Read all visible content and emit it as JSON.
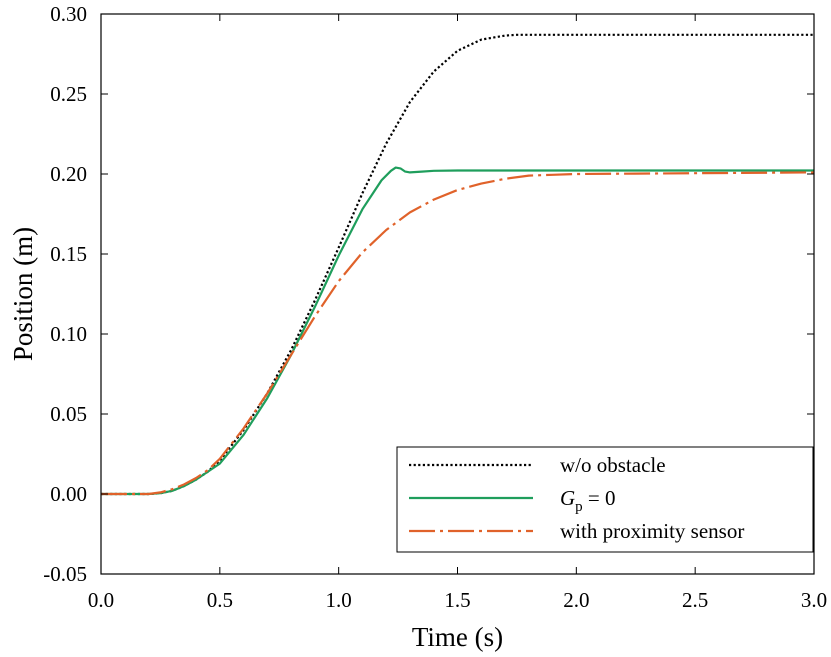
{
  "chart_data": {
    "type": "line",
    "xlabel": "Time (s)",
    "ylabel": "Position (m)",
    "xlim": [
      0,
      3
    ],
    "ylim": [
      -0.05,
      0.3
    ],
    "grid": false,
    "legend_position": "bottom-right",
    "x_ticks": [
      "0.0",
      "0.5",
      "1.0",
      "1.5",
      "2.0",
      "2.5",
      "3.0"
    ],
    "y_ticks": [
      "-0.05",
      "0.00",
      "0.05",
      "0.10",
      "0.15",
      "0.20",
      "0.25",
      "0.30"
    ],
    "x_tick_values": [
      0,
      0.5,
      1.0,
      1.5,
      2.0,
      2.5,
      3.0
    ],
    "y_tick_values": [
      -0.05,
      0,
      0.05,
      0.1,
      0.15,
      0.2,
      0.25,
      0.3
    ],
    "series": [
      {
        "name": "w/o obstacle",
        "color": "#000000",
        "style": "dotted",
        "x": [
          0,
          0.2,
          0.25,
          0.3,
          0.35,
          0.4,
          0.45,
          0.5,
          0.6,
          0.7,
          0.8,
          0.9,
          1.0,
          1.1,
          1.2,
          1.3,
          1.4,
          1.5,
          1.6,
          1.7,
          1.75,
          1.8,
          1.85,
          2.0,
          2.5,
          3.0
        ],
        "y": [
          0,
          0,
          0.0005,
          0.002,
          0.005,
          0.009,
          0.014,
          0.021,
          0.04,
          0.063,
          0.09,
          0.121,
          0.154,
          0.188,
          0.219,
          0.245,
          0.264,
          0.277,
          0.284,
          0.2865,
          0.287,
          0.287,
          0.287,
          0.287,
          0.287,
          0.287
        ]
      },
      {
        "name": "G_p = 0",
        "label_main": "G",
        "label_sub": "p",
        "label_rest": " = 0",
        "color": "#1f9e5c",
        "style": "solid",
        "x": [
          0,
          0.2,
          0.25,
          0.3,
          0.35,
          0.4,
          0.45,
          0.5,
          0.6,
          0.7,
          0.8,
          0.9,
          1.0,
          1.1,
          1.18,
          1.22,
          1.24,
          1.26,
          1.28,
          1.3,
          1.35,
          1.4,
          1.5,
          2.0,
          2.5,
          3.0
        ],
        "y": [
          0,
          0,
          0.0005,
          0.002,
          0.005,
          0.009,
          0.014,
          0.019,
          0.037,
          0.06,
          0.087,
          0.117,
          0.149,
          0.178,
          0.196,
          0.202,
          0.204,
          0.2035,
          0.2015,
          0.201,
          0.2015,
          0.202,
          0.2022,
          0.2022,
          0.2022,
          0.2022
        ]
      },
      {
        "name": "with proximity sensor",
        "color": "#e0622a",
        "style": "dashdot",
        "x": [
          0,
          0.2,
          0.25,
          0.3,
          0.35,
          0.4,
          0.45,
          0.5,
          0.6,
          0.7,
          0.8,
          0.9,
          1.0,
          1.1,
          1.2,
          1.3,
          1.4,
          1.5,
          1.6,
          1.7,
          1.8,
          1.9,
          2.0,
          2.5,
          3.0
        ],
        "y": [
          0,
          0,
          0.001,
          0.003,
          0.006,
          0.01,
          0.015,
          0.022,
          0.041,
          0.063,
          0.087,
          0.111,
          0.133,
          0.151,
          0.165,
          0.176,
          0.184,
          0.19,
          0.194,
          0.197,
          0.199,
          0.1995,
          0.2,
          0.2005,
          0.201
        ]
      }
    ]
  }
}
